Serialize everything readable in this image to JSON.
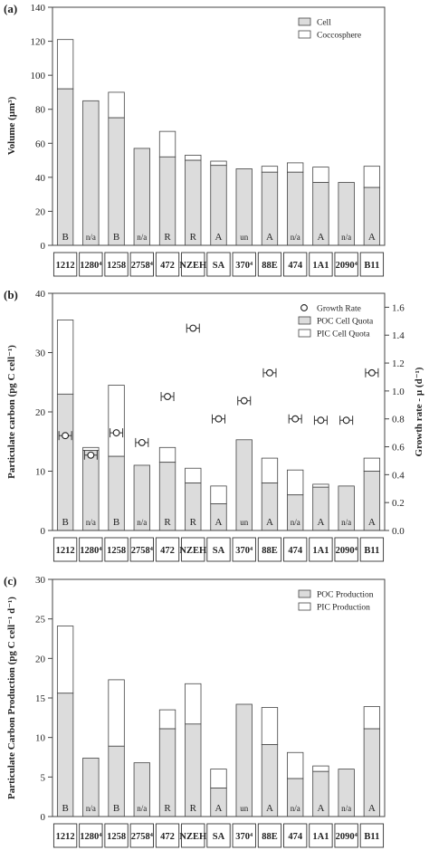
{
  "categories": [
    "1212",
    "1280⁴",
    "1258",
    "2758⁴",
    "472",
    "NZEH",
    "SA",
    "370⁴",
    "88E",
    "474",
    "1A1",
    "2090⁴",
    "B11"
  ],
  "bar_tags": [
    "B",
    "n/a",
    "B",
    "n/a",
    "R",
    "R",
    "A",
    "un",
    "A",
    "n/a",
    "A",
    "n/a",
    "A"
  ],
  "colors": {
    "lower": "#dcdcdc",
    "upper": "#ffffff",
    "stroke": "#444444"
  },
  "chart_data": [
    {
      "type": "bar",
      "panel": "(a)",
      "ylabel": "Volume (µm³)",
      "ylim": [
        0,
        140
      ],
      "yticks": [
        0,
        20,
        40,
        60,
        80,
        100,
        120,
        140
      ],
      "categories": [
        "1212",
        "1280⁴",
        "1258",
        "2758⁴",
        "472",
        "NZEH",
        "SA",
        "370⁴",
        "88E",
        "474",
        "1A1",
        "2090⁴",
        "B11"
      ],
      "series": [
        {
          "name": "Cell",
          "values": [
            92,
            85,
            75,
            57,
            52,
            50,
            47,
            45,
            43,
            43,
            37,
            37,
            34
          ]
        },
        {
          "name": "Coccosphere",
          "values": [
            121,
            85,
            90,
            57,
            67,
            53,
            49.5,
            45,
            46.5,
            48.5,
            46,
            37,
            46.5
          ]
        }
      ],
      "legend_position": "top-right"
    },
    {
      "type": "bar",
      "panel": "(b)",
      "ylabel": "Particulate carbon (pg C cell⁻¹)",
      "y2label": "Growth rate - µ (d⁻¹)",
      "ylim": [
        0,
        40
      ],
      "yticks": [
        0,
        10,
        20,
        30,
        40
      ],
      "y2lim": [
        0,
        1.7
      ],
      "y2ticks": [
        "0.0",
        "0.2",
        "0.4",
        "0.6",
        "0.8",
        "1.0",
        "1.2",
        "1.4",
        "1.6"
      ],
      "categories": [
        "1212",
        "1280⁴",
        "1258",
        "2758⁴",
        "472",
        "NZEH",
        "SA",
        "370⁴",
        "88E",
        "474",
        "1A1",
        "2090⁴",
        "B11"
      ],
      "series": [
        {
          "name": "POC Cell Quota",
          "values": [
            23,
            13.5,
            12.5,
            11,
            11.5,
            8,
            4.5,
            15.3,
            8,
            6,
            7.3,
            7.5,
            10
          ]
        },
        {
          "name": "PIC Cell Quota",
          "values": [
            35.5,
            14,
            24.5,
            11,
            14,
            10.5,
            7.5,
            15.3,
            12.2,
            10.2,
            7.8,
            7.5,
            12.2
          ]
        },
        {
          "name": "Growth Rate",
          "values": [
            0.68,
            0.54,
            0.7,
            0.63,
            0.96,
            1.45,
            0.8,
            0.93,
            1.13,
            0.8,
            0.79,
            0.79,
            1.13
          ]
        }
      ],
      "legend_position": "top-right"
    },
    {
      "type": "bar",
      "panel": "(c)",
      "ylabel": "Particulate Carbon Production (pg C cell⁻¹ d⁻¹)",
      "ylim": [
        0,
        30
      ],
      "yticks": [
        0,
        5,
        10,
        15,
        20,
        25,
        30
      ],
      "categories": [
        "1212",
        "1280⁴",
        "1258",
        "2758⁴",
        "472",
        "NZEH",
        "SA",
        "370⁴",
        "88E",
        "474",
        "1A1",
        "2090⁴",
        "B11"
      ],
      "series": [
        {
          "name": "POC Production",
          "values": [
            15.6,
            7.4,
            8.9,
            6.8,
            11.1,
            11.7,
            3.6,
            14.2,
            9.1,
            4.8,
            5.7,
            6,
            11.1
          ]
        },
        {
          "name": "PIC Production",
          "values": [
            24.1,
            7.4,
            17.3,
            6.8,
            13.5,
            16.8,
            6,
            14.2,
            13.8,
            8.1,
            6.4,
            6,
            13.9
          ]
        }
      ],
      "legend_position": "top-right"
    }
  ]
}
